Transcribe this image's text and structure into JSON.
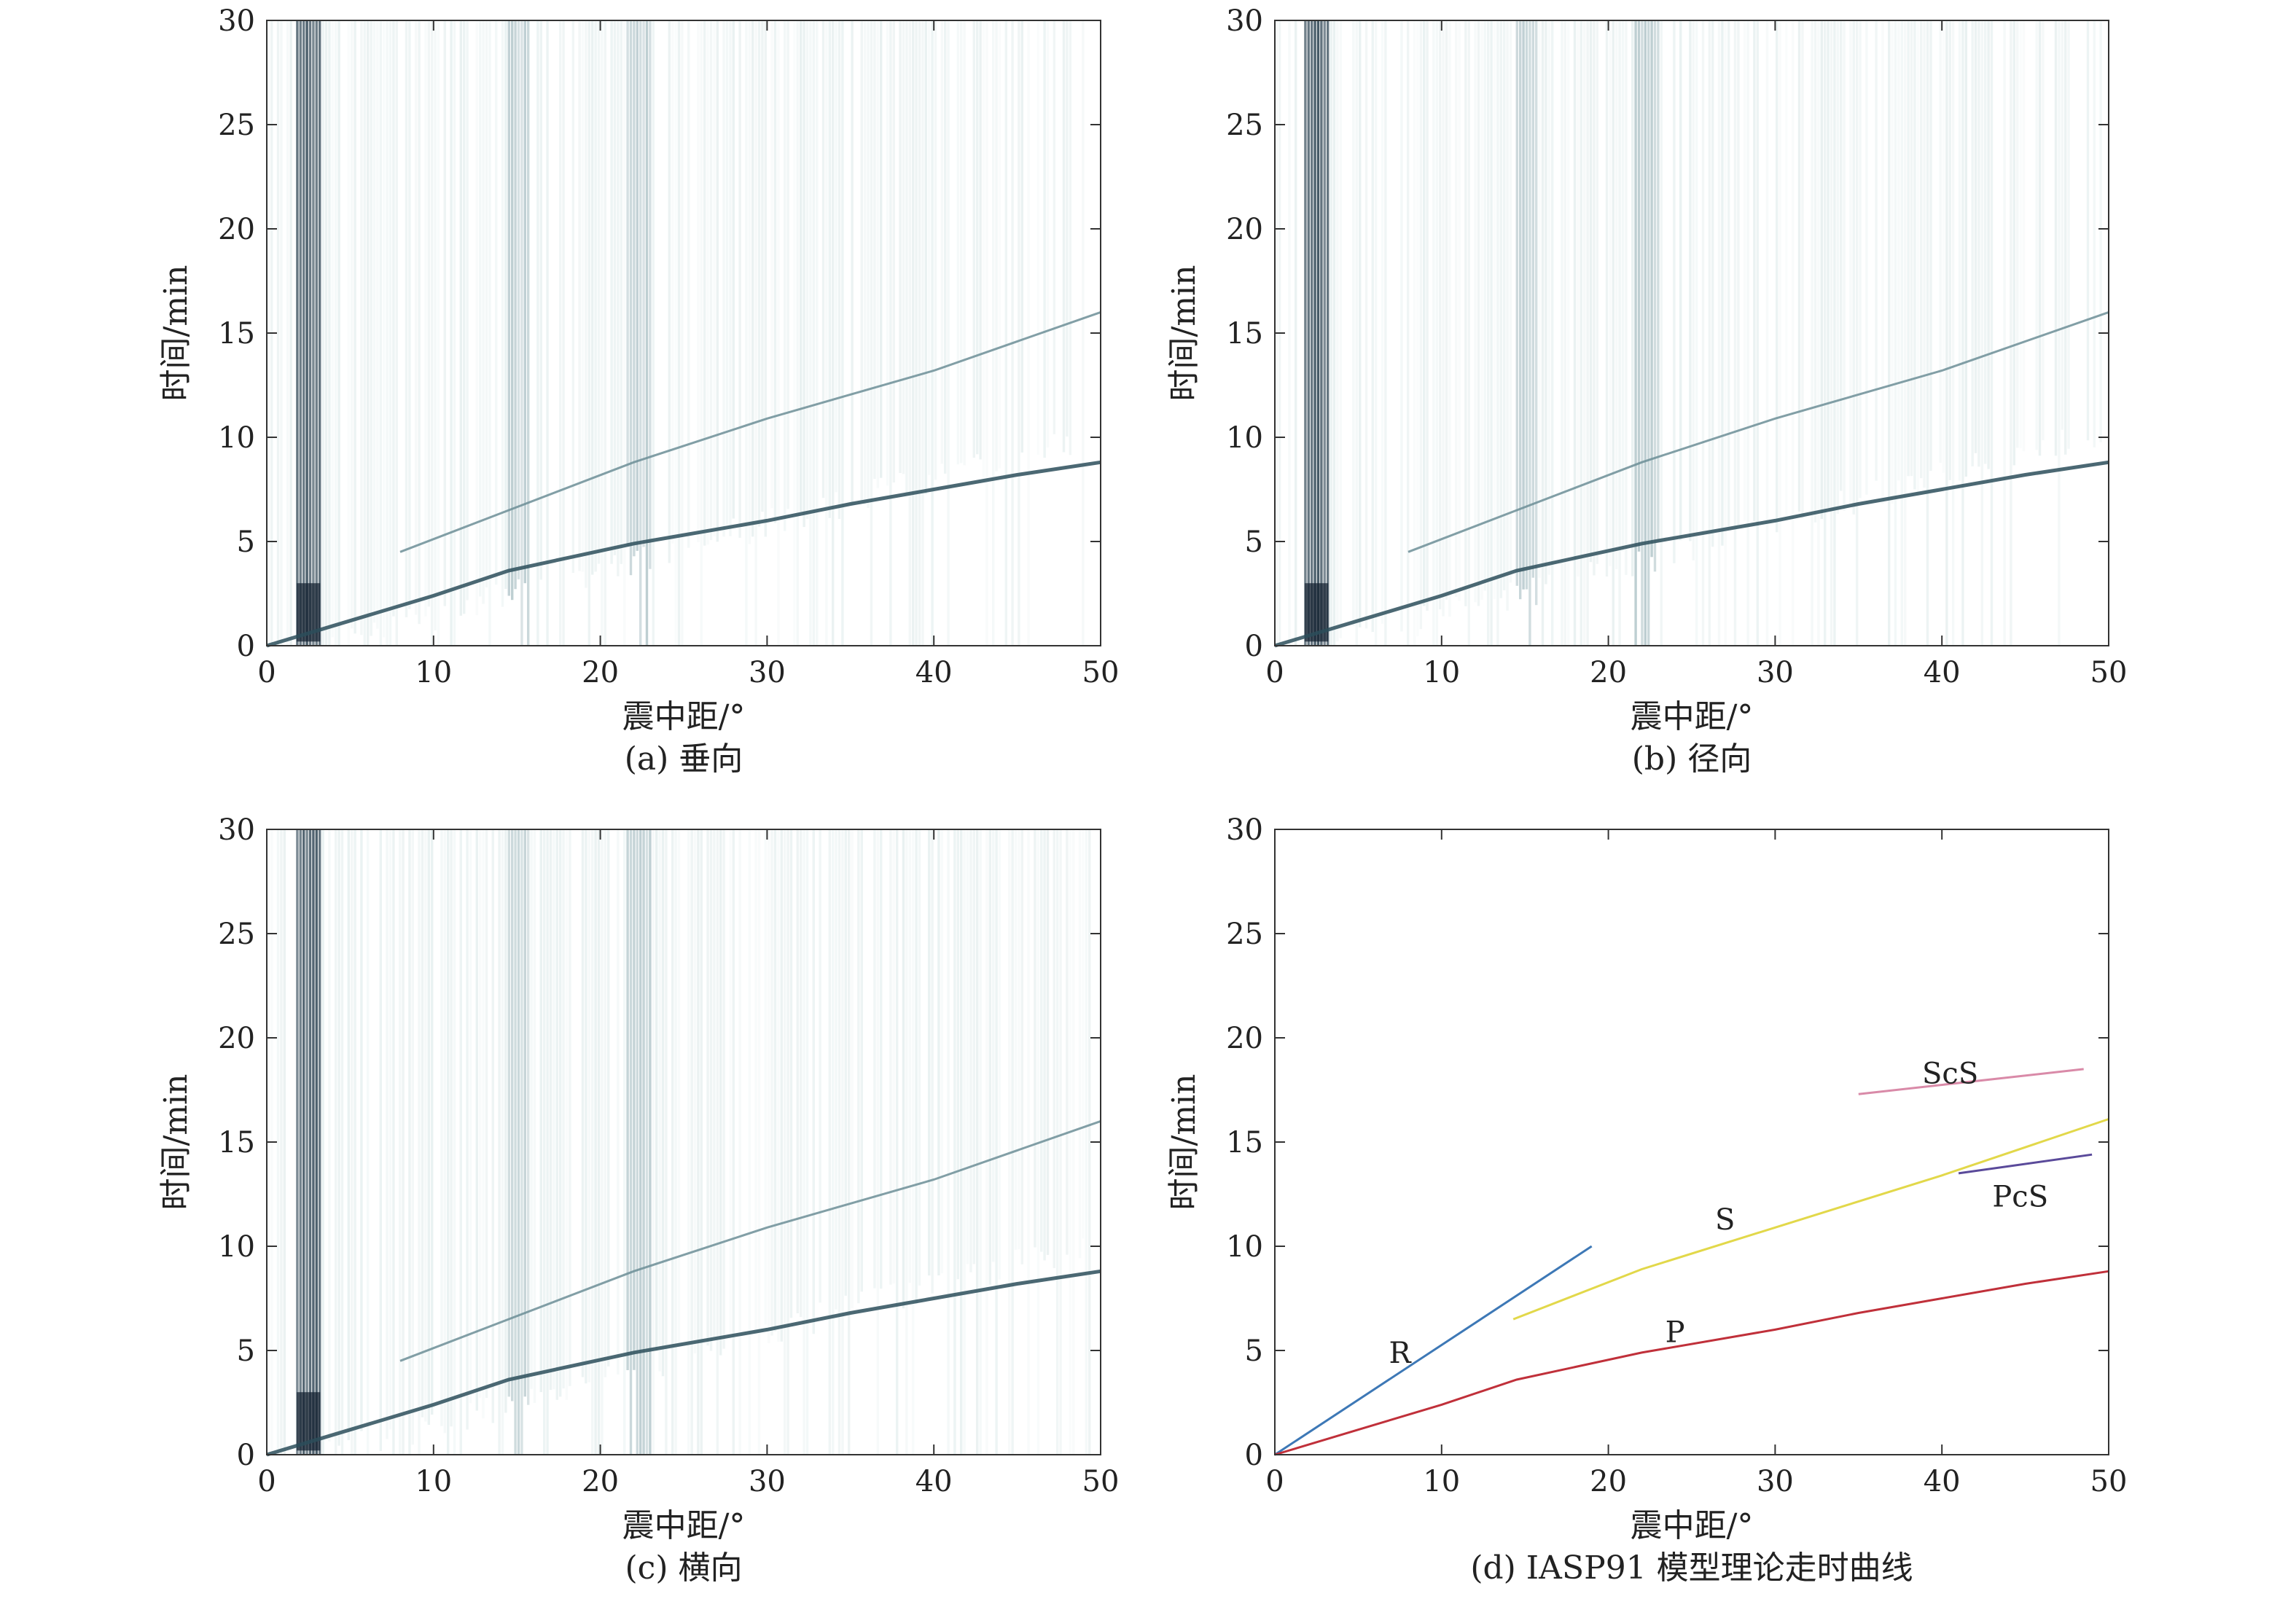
{
  "chart_data": [
    {
      "type": "heatmap",
      "panel": "a",
      "caption": "(a) 垂向",
      "xlabel": "震中距/°",
      "ylabel": "时间/min",
      "xlim": [
        0,
        50
      ],
      "ylim": [
        0,
        30
      ],
      "xticks": [
        "0",
        "10",
        "20",
        "30",
        "40",
        "50"
      ],
      "yticks": [
        "0",
        "5",
        "10",
        "15",
        "20",
        "25",
        "30"
      ],
      "colormap": [
        "#ffffff",
        "#dfeeed",
        "#8fb3b3",
        "#3f6a74",
        "#122234"
      ],
      "dense_bands_deg": [
        [
          1.8,
          3.2
        ],
        [
          14.5,
          15.8
        ],
        [
          21.5,
          23.0
        ]
      ],
      "phase_traces": {
        "P": [
          [
            0,
            0
          ],
          [
            5,
            1.2
          ],
          [
            10,
            2.4
          ],
          [
            14.5,
            3.6
          ],
          [
            22,
            4.9
          ],
          [
            30,
            6.0
          ],
          [
            35,
            6.8
          ],
          [
            40,
            7.5
          ],
          [
            45,
            8.2
          ],
          [
            50,
            8.8
          ]
        ],
        "S": [
          [
            8,
            4.5
          ],
          [
            14.5,
            6.5
          ],
          [
            22,
            8.8
          ],
          [
            30,
            10.9
          ],
          [
            40,
            13.2
          ],
          [
            50,
            16.0
          ]
        ]
      }
    },
    {
      "type": "heatmap",
      "panel": "b",
      "caption": "(b) 径向",
      "xlabel": "震中距/°",
      "ylabel": "时间/min",
      "xlim": [
        0,
        50
      ],
      "ylim": [
        0,
        30
      ],
      "xticks": [
        "0",
        "10",
        "20",
        "30",
        "40",
        "50"
      ],
      "yticks": [
        "0",
        "5",
        "10",
        "15",
        "20",
        "25",
        "30"
      ],
      "dense_bands_deg": [
        [
          1.8,
          3.2
        ],
        [
          14.5,
          15.8
        ],
        [
          21.5,
          23.0
        ]
      ]
    },
    {
      "type": "heatmap",
      "panel": "c",
      "caption": "(c) 横向",
      "xlabel": "震中距/°",
      "ylabel": "时间/min",
      "xlim": [
        0,
        50
      ],
      "ylim": [
        0,
        30
      ],
      "xticks": [
        "0",
        "10",
        "20",
        "30",
        "40",
        "50"
      ],
      "yticks": [
        "0",
        "5",
        "10",
        "15",
        "20",
        "25",
        "30"
      ],
      "dense_bands_deg": [
        [
          1.8,
          3.2
        ],
        [
          14.5,
          15.8
        ],
        [
          21.5,
          23.0
        ]
      ]
    },
    {
      "type": "line",
      "panel": "d",
      "caption": "(d) IASP91 模型理论走时曲线",
      "xlabel": "震中距/°",
      "ylabel": "时间/min",
      "xlim": [
        0,
        50
      ],
      "ylim": [
        0,
        30
      ],
      "xticks": [
        "0",
        "10",
        "20",
        "30",
        "40",
        "50"
      ],
      "yticks": [
        "0",
        "5",
        "10",
        "15",
        "20",
        "25",
        "30"
      ],
      "series": [
        {
          "name": "R",
          "color": "#3d78b6",
          "points": [
            [
              0,
              0
            ],
            [
              19,
              10.0
            ]
          ],
          "label_at": [
            7.5,
            4.9
          ]
        },
        {
          "name": "P",
          "color": "#c0303a",
          "points": [
            [
              0,
              0
            ],
            [
              5,
              1.2
            ],
            [
              10,
              2.4
            ],
            [
              14.5,
              3.6
            ],
            [
              22,
              4.9
            ],
            [
              30,
              6.0
            ],
            [
              35,
              6.8
            ],
            [
              40,
              7.5
            ],
            [
              45,
              8.2
            ],
            [
              50,
              8.8
            ]
          ],
          "label_at": [
            24,
            5.9
          ]
        },
        {
          "name": "S",
          "color": "#e2d84a",
          "points": [
            [
              14.3,
              6.5
            ],
            [
              22,
              8.9
            ],
            [
              30,
              10.9
            ],
            [
              40,
              13.4
            ],
            [
              50,
              16.1
            ]
          ],
          "label_at": [
            27,
            11.3
          ]
        },
        {
          "name": "ScS",
          "color": "#d98aa8",
          "points": [
            [
              35,
              17.3
            ],
            [
              48.5,
              18.5
            ]
          ],
          "label_at": [
            40.5,
            18.3
          ]
        },
        {
          "name": "PcS",
          "color": "#5a4a9a",
          "points": [
            [
              41,
              13.5
            ],
            [
              49,
              14.4
            ]
          ],
          "label_at": [
            44.7,
            12.4
          ]
        }
      ]
    }
  ]
}
